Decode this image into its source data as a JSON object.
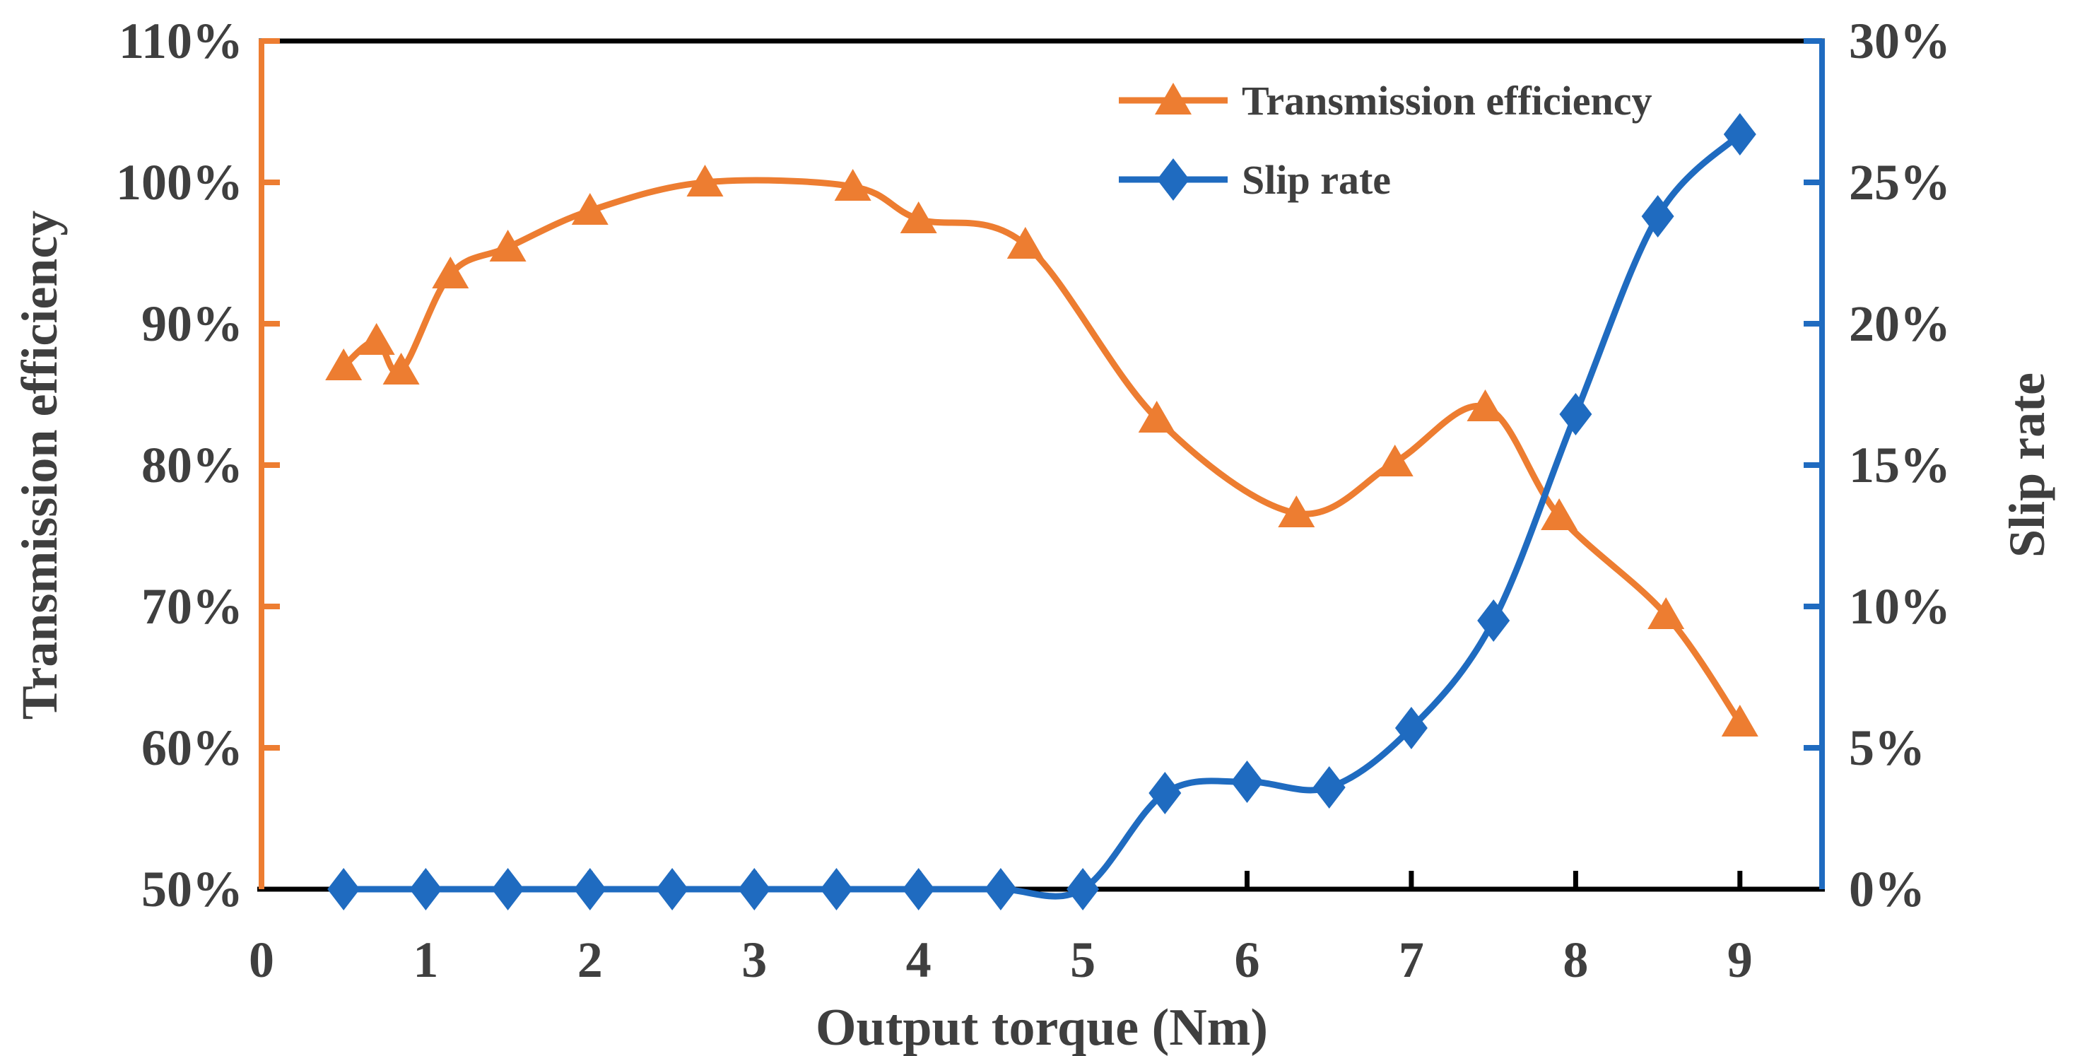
{
  "figure": {
    "background_color": "#FFFFFF",
    "text_color": "#3F3F3F"
  },
  "chart_data": {
    "type": "line",
    "title": "",
    "xlabel": "Output torque (Nm)",
    "x_tick_labels": [
      "0",
      "1",
      "2",
      "3",
      "4",
      "5",
      "6",
      "7",
      "8",
      "9"
    ],
    "x_tick_values": [
      0,
      1,
      2,
      3,
      4,
      5,
      6,
      7,
      8,
      9
    ],
    "xlim": [
      0,
      9.5
    ],
    "grid": false,
    "legend_position": "top-center-inside",
    "left_axis": {
      "label": "Transmission efficiency",
      "tick_labels": [
        "50%",
        "60%",
        "70%",
        "80%",
        "90%",
        "100%",
        "110%"
      ],
      "tick_values": [
        50,
        60,
        70,
        80,
        90,
        100,
        110
      ],
      "lim": [
        50,
        110
      ],
      "axis_color": "#ED7D31"
    },
    "right_axis": {
      "label": "Slip rate",
      "tick_labels": [
        "0%",
        "5%",
        "10%",
        "15%",
        "20%",
        "25%",
        "30%"
      ],
      "tick_values": [
        0,
        5,
        10,
        15,
        20,
        25,
        30
      ],
      "lim": [
        0,
        30
      ],
      "axis_color": "#1F6BC0"
    },
    "series": [
      {
        "name": "Transmission efficiency",
        "axis": "left",
        "color": "#ED7D31",
        "marker": "triangle",
        "smooth": true,
        "x": [
          0.5,
          0.7,
          0.85,
          1.15,
          1.5,
          2.0,
          2.7,
          3.6,
          4.0,
          4.65,
          5.45,
          6.3,
          6.9,
          7.45,
          7.9,
          8.55,
          9.0
        ],
        "values": [
          87.0,
          88.8,
          86.7,
          93.5,
          95.4,
          98.0,
          100.0,
          99.7,
          97.4,
          95.6,
          83.3,
          76.6,
          80.2,
          84.1,
          76.4,
          69.4,
          61.8
        ]
      },
      {
        "name": "Slip rate",
        "axis": "right",
        "color": "#1F6BC0",
        "marker": "diamond",
        "smooth": true,
        "x": [
          0.5,
          1.0,
          1.5,
          2.0,
          2.5,
          3.0,
          3.5,
          4.0,
          4.5,
          5.0,
          5.5,
          6.0,
          6.5,
          7.0,
          7.5,
          8.0,
          8.5,
          9.0
        ],
        "values": [
          0,
          0,
          0,
          0,
          0,
          0,
          0,
          0,
          0,
          0,
          3.4,
          3.8,
          3.6,
          5.7,
          9.5,
          16.8,
          23.8,
          26.7
        ]
      }
    ]
  },
  "legend": {
    "items": [
      {
        "label": "Transmission efficiency",
        "marker": "triangle",
        "color": "#ED7D31"
      },
      {
        "label": "Slip rate",
        "marker": "diamond",
        "color": "#1F6BC0"
      }
    ]
  }
}
